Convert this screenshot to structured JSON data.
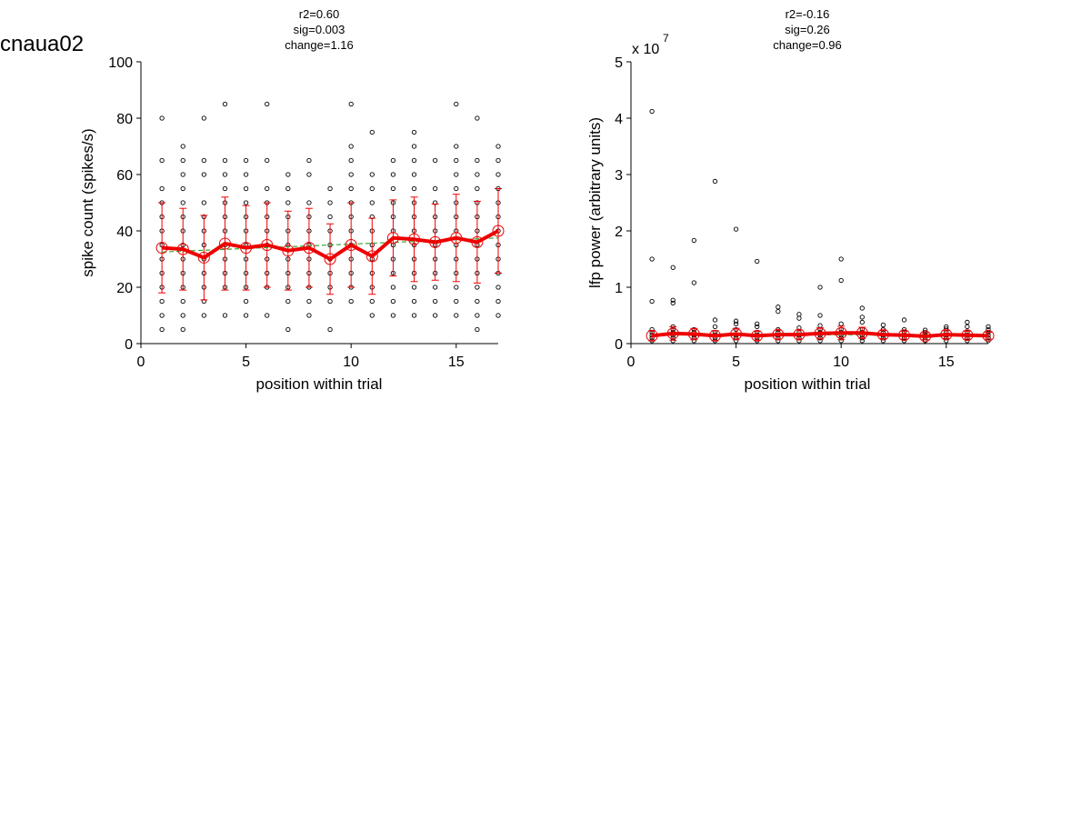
{
  "figure": {
    "title": "cnaua02"
  },
  "colors": {
    "raw_points": "#000000",
    "mean_line": "#ee0000",
    "fit_line": "#33aa33",
    "axis": "#000000"
  },
  "chart_data": [
    {
      "type": "scatter",
      "stats": [
        "r2=0.60",
        "sig=0.003",
        "change=1.16"
      ],
      "xlabel": "position within trial",
      "ylabel": "spike count (spikes/s)",
      "xlim": [
        0,
        17
      ],
      "ylim": [
        0,
        100
      ],
      "xticks": [
        0,
        5,
        10,
        15
      ],
      "yticks": [
        0,
        20,
        40,
        60,
        80,
        100
      ],
      "ytick_labels": [
        "0",
        "20",
        "40",
        "60",
        "80",
        "100"
      ],
      "exponent_label": "",
      "grid": false,
      "x": [
        1,
        2,
        3,
        4,
        5,
        6,
        7,
        8,
        9,
        10,
        11,
        12,
        13,
        14,
        15,
        16,
        17
      ],
      "raw_points": [
        [
          5,
          10,
          15,
          20,
          25,
          30,
          35,
          40,
          45,
          50,
          55,
          65,
          80
        ],
        [
          5,
          10,
          15,
          20,
          25,
          30,
          35,
          40,
          45,
          50,
          55,
          60,
          65,
          70
        ],
        [
          10,
          15,
          20,
          25,
          30,
          35,
          40,
          45,
          50,
          60,
          65,
          80
        ],
        [
          10,
          20,
          25,
          30,
          35,
          40,
          45,
          50,
          55,
          60,
          65,
          85
        ],
        [
          10,
          15,
          20,
          25,
          30,
          35,
          40,
          45,
          50,
          55,
          60,
          65
        ],
        [
          10,
          20,
          25,
          30,
          35,
          40,
          45,
          50,
          55,
          65,
          85
        ],
        [
          5,
          15,
          20,
          25,
          30,
          35,
          40,
          45,
          50,
          55,
          60
        ],
        [
          10,
          15,
          20,
          25,
          30,
          35,
          40,
          45,
          50,
          60,
          65
        ],
        [
          5,
          15,
          20,
          25,
          30,
          35,
          40,
          45,
          50,
          55
        ],
        [
          15,
          20,
          25,
          30,
          35,
          40,
          45,
          50,
          55,
          60,
          65,
          70,
          85
        ],
        [
          10,
          15,
          20,
          25,
          30,
          35,
          40,
          45,
          50,
          55,
          60,
          75
        ],
        [
          10,
          15,
          20,
          25,
          30,
          35,
          40,
          45,
          50,
          55,
          60,
          65
        ],
        [
          10,
          15,
          20,
          25,
          30,
          35,
          40,
          45,
          50,
          55,
          60,
          65,
          70,
          75
        ],
        [
          10,
          15,
          20,
          25,
          30,
          35,
          40,
          45,
          50,
          55,
          65
        ],
        [
          10,
          15,
          20,
          25,
          30,
          35,
          40,
          45,
          50,
          55,
          60,
          65,
          70,
          85
        ],
        [
          5,
          10,
          15,
          20,
          25,
          30,
          35,
          40,
          45,
          50,
          55,
          60,
          65,
          80
        ],
        [
          10,
          15,
          20,
          25,
          30,
          35,
          40,
          45,
          50,
          55,
          60,
          65,
          70
        ]
      ],
      "series": [
        {
          "name": "mean",
          "values": [
            34,
            33.5,
            30.5,
            35.5,
            34,
            35,
            33,
            34,
            30,
            35,
            31,
            37.5,
            37,
            36,
            37.5,
            36,
            40
          ]
        }
      ],
      "error_bars": [
        16,
        14.5,
        15,
        16.5,
        15,
        15,
        14,
        14,
        12.5,
        15,
        13.5,
        13.5,
        15,
        13.5,
        15.5,
        14.5,
        15
      ],
      "fit": {
        "start": 32.5,
        "end": 37.5
      }
    },
    {
      "type": "scatter",
      "stats": [
        "r2=-0.16",
        "sig=0.26",
        "change=0.96"
      ],
      "xlabel": "position within trial",
      "ylabel": "lfp power (arbitrary units)",
      "xlim": [
        0,
        17
      ],
      "ylim": [
        0,
        5
      ],
      "xticks": [
        0,
        5,
        10,
        15
      ],
      "yticks": [
        0,
        1,
        2,
        3,
        4,
        5
      ],
      "ytick_labels": [
        "0",
        "1",
        "2",
        "3",
        "4",
        "5"
      ],
      "exponent_label": "x 10",
      "exponent": "7",
      "grid": false,
      "x": [
        1,
        2,
        3,
        4,
        5,
        6,
        7,
        8,
        9,
        10,
        11,
        12,
        13,
        14,
        15,
        16,
        17
      ],
      "raw_points": [
        [
          0.05,
          0.1,
          0.15,
          0.2,
          0.25,
          0.75,
          1.5,
          4.12
        ],
        [
          0.05,
          0.1,
          0.15,
          0.2,
          0.25,
          0.3,
          0.72,
          0.77,
          1.35
        ],
        [
          0.05,
          0.1,
          0.15,
          0.2,
          0.25,
          1.08,
          1.83
        ],
        [
          0.05,
          0.1,
          0.15,
          0.2,
          0.3,
          0.42,
          2.88
        ],
        [
          0.05,
          0.1,
          0.15,
          0.25,
          0.35,
          0.4,
          2.03
        ],
        [
          0.05,
          0.1,
          0.15,
          0.2,
          0.3,
          0.35,
          1.46
        ],
        [
          0.05,
          0.1,
          0.15,
          0.2,
          0.25,
          0.57,
          0.65
        ],
        [
          0.05,
          0.1,
          0.15,
          0.2,
          0.28,
          0.45,
          0.52
        ],
        [
          0.05,
          0.1,
          0.15,
          0.2,
          0.25,
          0.32,
          0.5,
          1.0
        ],
        [
          0.05,
          0.1,
          0.15,
          0.2,
          0.25,
          0.35,
          1.12,
          1.5
        ],
        [
          0.05,
          0.1,
          0.15,
          0.2,
          0.25,
          0.38,
          0.47,
          0.63
        ],
        [
          0.05,
          0.1,
          0.15,
          0.2,
          0.25,
          0.33
        ],
        [
          0.05,
          0.1,
          0.15,
          0.2,
          0.25,
          0.42
        ],
        [
          0.05,
          0.1,
          0.15,
          0.2,
          0.24
        ],
        [
          0.05,
          0.1,
          0.15,
          0.2,
          0.26,
          0.3
        ],
        [
          0.05,
          0.1,
          0.15,
          0.2,
          0.3,
          0.38
        ],
        [
          0.05,
          0.1,
          0.15,
          0.2,
          0.25,
          0.3
        ]
      ],
      "series": [
        {
          "name": "mean",
          "values": [
            0.14,
            0.18,
            0.17,
            0.14,
            0.17,
            0.14,
            0.16,
            0.16,
            0.18,
            0.19,
            0.19,
            0.16,
            0.15,
            0.13,
            0.16,
            0.15,
            0.14
          ]
        }
      ],
      "error_bars": [
        0.09,
        0.12,
        0.1,
        0.09,
        0.1,
        0.08,
        0.08,
        0.08,
        0.1,
        0.12,
        0.1,
        0.07,
        0.07,
        0.06,
        0.07,
        0.07,
        0.06
      ],
      "fit": {
        "start": 0.16,
        "end": 0.155
      }
    }
  ]
}
